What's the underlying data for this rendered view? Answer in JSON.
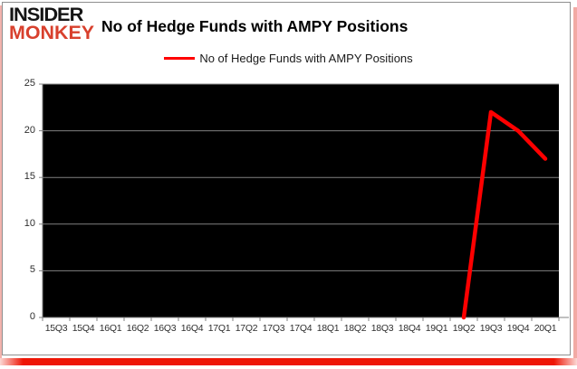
{
  "header": {
    "logo_line1": "INSIDER",
    "logo_line2": "MONKEY",
    "title": "No of Hedge Funds with AMPY Positions"
  },
  "colors": {
    "series_line": "#ff0000",
    "logo_accent": "#d8402d",
    "plot_background": "#000000",
    "gridline": "#808080",
    "frame_bottom_bar": "#ee1505"
  },
  "chart_data": {
    "type": "line",
    "title": "No of Hedge Funds with AMPY Positions",
    "legend": [
      "No of Hedge Funds with AMPY Positions"
    ],
    "legend_position": "top",
    "grid": true,
    "plot_bg": "#000000",
    "ylim": [
      0,
      25
    ],
    "yticks": [
      0,
      5,
      10,
      15,
      20,
      25
    ],
    "categories": [
      "15Q3",
      "15Q4",
      "16Q1",
      "16Q2",
      "16Q3",
      "16Q4",
      "17Q1",
      "17Q2",
      "17Q3",
      "17Q4",
      "18Q1",
      "18Q2",
      "18Q3",
      "18Q4",
      "19Q1",
      "19Q2",
      "19Q3",
      "19Q4",
      "20Q1"
    ],
    "series": [
      {
        "name": "No of Hedge Funds with AMPY Positions",
        "color": "#ff0000",
        "values": [
          null,
          null,
          null,
          null,
          null,
          null,
          null,
          null,
          null,
          null,
          null,
          null,
          null,
          null,
          null,
          0,
          22,
          20,
          17
        ]
      }
    ]
  }
}
